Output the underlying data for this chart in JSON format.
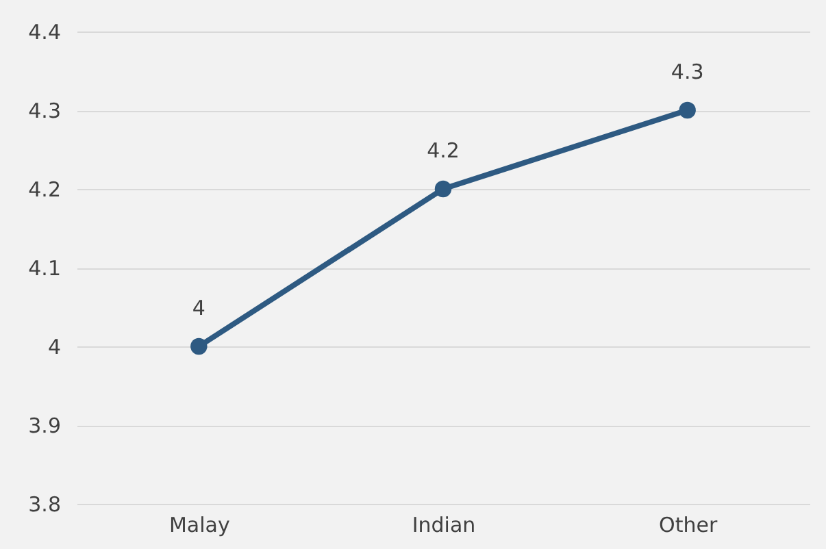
{
  "chart_data": {
    "type": "line",
    "categories": [
      "Malay",
      "Indian",
      "Other"
    ],
    "series": [
      {
        "color": "#2e5a82",
        "values": [
          4,
          4.2,
          4.3
        ]
      }
    ],
    "ylim": [
      3.8,
      4.4
    ],
    "yticks": [
      3.8,
      3.9,
      4,
      4.1,
      4.2,
      4.3,
      4.4
    ],
    "grid": "y",
    "marker": "circle",
    "line_style": "solid",
    "data_labels": true
  }
}
